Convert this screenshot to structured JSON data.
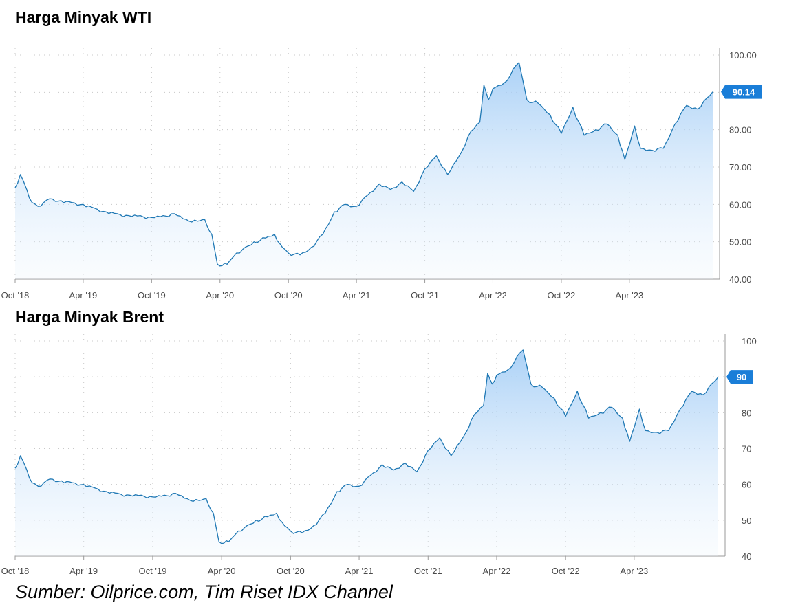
{
  "chart_data": [
    {
      "type": "area",
      "title": "Harga Minyak WTI",
      "x_tick_labels": [
        "Oct '18",
        "Apr '19",
        "Oct '19",
        "Apr '20",
        "Oct '20",
        "Apr '21",
        "Oct '21",
        "Apr '22",
        "Oct '22",
        "Apr '23"
      ],
      "y_tick_labels": [
        "100.00",
        "90.00",
        "80.00",
        "70.00",
        "60.00",
        "50.00",
        "40.00"
      ],
      "ylim": [
        40,
        100
      ],
      "xlim": [
        "2018-10-01",
        "2023-11-10"
      ],
      "last_value_label": "90.14",
      "grid": true,
      "color": "#1f78b4",
      "series": [
        {
          "x": [
            "2018-10-01",
            "2018-10-15",
            "2018-11-01",
            "2018-11-15",
            "2018-12-01",
            "2019-01-01",
            "2019-02-01",
            "2019-03-01",
            "2019-04-01",
            "2019-05-01",
            "2019-06-01",
            "2019-07-01",
            "2019-08-01",
            "2019-09-01",
            "2019-10-01",
            "2019-11-01",
            "2019-12-01",
            "2020-01-01",
            "2020-02-01",
            "2020-02-20",
            "2020-03-10",
            "2020-03-25",
            "2020-04-20",
            "2020-05-15",
            "2020-06-01",
            "2020-07-01",
            "2020-08-01",
            "2020-08-25",
            "2020-09-15",
            "2020-10-01",
            "2020-11-01",
            "2020-12-01",
            "2021-01-01",
            "2021-02-01",
            "2021-03-01",
            "2021-04-01",
            "2021-05-01",
            "2021-06-01",
            "2021-07-01",
            "2021-08-01",
            "2021-09-01",
            "2021-10-01",
            "2021-11-01",
            "2021-12-01",
            "2022-01-01",
            "2022-02-01",
            "2022-02-25",
            "2022-03-08",
            "2022-03-20",
            "2022-04-01",
            "2022-05-01",
            "2022-06-10",
            "2022-07-01",
            "2022-08-01",
            "2022-09-01",
            "2022-10-01",
            "2022-11-01",
            "2022-12-01",
            "2023-01-01",
            "2023-02-01",
            "2023-03-01",
            "2023-03-20",
            "2023-04-15",
            "2023-05-01",
            "2023-06-01",
            "2023-07-01",
            "2023-08-01",
            "2023-09-01",
            "2023-10-01",
            "2023-11-10"
          ],
          "values": [
            64.5,
            68.0,
            64.0,
            60.5,
            59.5,
            61.5,
            61.0,
            60.5,
            60.0,
            59.0,
            58.0,
            57.5,
            57.0,
            57.0,
            56.5,
            57.0,
            57.5,
            56.0,
            55.5,
            56.0,
            52.0,
            44.0,
            44.0,
            47.0,
            48.0,
            50.0,
            51.0,
            52.0,
            48.5,
            47.0,
            46.5,
            48.5,
            52.0,
            58.0,
            60.0,
            59.5,
            62.5,
            65.5,
            64.0,
            66.0,
            63.5,
            69.5,
            73.0,
            68.0,
            73.0,
            79.5,
            82.0,
            92.0,
            88.0,
            91.0,
            92.5,
            98.0,
            88.0,
            87.0,
            84.0,
            79.0,
            86.0,
            78.5,
            80.0,
            81.5,
            78.5,
            72.0,
            81.0,
            75.0,
            74.5,
            75.0,
            81.5,
            86.5,
            85.5,
            90.14
          ]
        }
      ]
    },
    {
      "type": "area",
      "title": "Harga Minyak Brent",
      "x_tick_labels": [
        "Oct '18",
        "Apr '19",
        "Oct '19",
        "Apr '20",
        "Oct '20",
        "Apr '21",
        "Oct '21",
        "Apr '22",
        "Oct '22",
        "Apr '23"
      ],
      "y_tick_labels": [
        "100",
        "90",
        "80",
        "70",
        "60",
        "50",
        "40"
      ],
      "ylim": [
        40,
        100
      ],
      "xlim": [
        "2018-10-01",
        "2023-11-10"
      ],
      "last_value_label": "90",
      "grid": true,
      "color": "#1f78b4",
      "series": [
        {
          "x": [
            "2018-10-01",
            "2018-10-15",
            "2018-11-01",
            "2018-11-15",
            "2018-12-01",
            "2019-01-01",
            "2019-02-01",
            "2019-03-01",
            "2019-04-01",
            "2019-05-01",
            "2019-06-01",
            "2019-07-01",
            "2019-08-01",
            "2019-09-01",
            "2019-10-01",
            "2019-11-01",
            "2019-12-01",
            "2020-01-01",
            "2020-02-01",
            "2020-02-20",
            "2020-03-10",
            "2020-03-25",
            "2020-04-20",
            "2020-05-15",
            "2020-06-01",
            "2020-07-01",
            "2020-08-01",
            "2020-08-25",
            "2020-09-15",
            "2020-10-01",
            "2020-11-01",
            "2020-12-01",
            "2021-01-01",
            "2021-02-01",
            "2021-03-01",
            "2021-04-01",
            "2021-05-01",
            "2021-06-01",
            "2021-07-01",
            "2021-08-01",
            "2021-09-01",
            "2021-10-01",
            "2021-11-01",
            "2021-12-01",
            "2022-01-01",
            "2022-02-01",
            "2022-02-25",
            "2022-03-08",
            "2022-03-20",
            "2022-04-01",
            "2022-05-01",
            "2022-06-10",
            "2022-07-01",
            "2022-08-01",
            "2022-09-01",
            "2022-10-01",
            "2022-11-01",
            "2022-12-01",
            "2023-01-01",
            "2023-02-01",
            "2023-03-01",
            "2023-03-20",
            "2023-04-15",
            "2023-05-01",
            "2023-06-01",
            "2023-07-01",
            "2023-08-01",
            "2023-09-01",
            "2023-10-01",
            "2023-11-10"
          ],
          "values": [
            64.5,
            68.0,
            64.0,
            60.5,
            59.5,
            61.5,
            61.0,
            60.5,
            60.0,
            59.0,
            58.0,
            57.5,
            57.0,
            57.0,
            56.5,
            57.0,
            57.5,
            56.0,
            55.5,
            56.0,
            52.0,
            44.0,
            44.0,
            47.0,
            48.0,
            50.0,
            51.0,
            52.0,
            48.5,
            47.0,
            46.5,
            48.5,
            52.0,
            58.0,
            60.0,
            59.5,
            62.5,
            65.5,
            64.0,
            66.0,
            63.5,
            69.5,
            73.0,
            68.0,
            73.0,
            79.5,
            82.0,
            91.0,
            88.0,
            90.5,
            92.0,
            97.5,
            88.0,
            87.0,
            84.0,
            79.0,
            86.0,
            78.5,
            80.0,
            81.5,
            78.5,
            72.0,
            81.0,
            75.0,
            74.5,
            75.0,
            81.0,
            86.0,
            85.0,
            90.0
          ]
        }
      ]
    }
  ],
  "source_text": "Sumber: Oilprice.com, Tim Riset IDX Channel"
}
